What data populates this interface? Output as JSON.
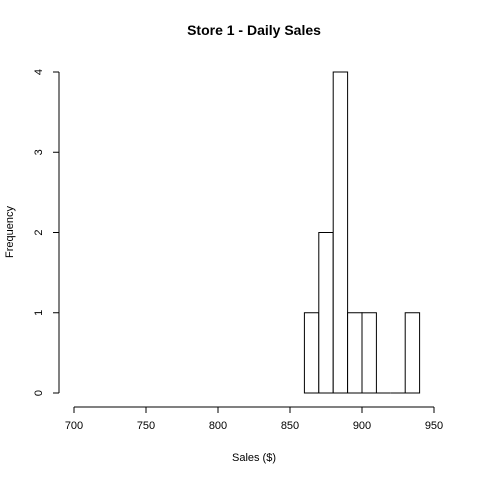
{
  "chart_data": {
    "type": "bar",
    "title": "Store 1 - Daily Sales",
    "xlabel": "Sales ($)",
    "ylabel": "Frequency",
    "xlim": [
      700,
      950
    ],
    "ylim": [
      0,
      4
    ],
    "xticks": [
      700,
      750,
      800,
      850,
      900,
      950
    ],
    "yticks": [
      0,
      1,
      2,
      3,
      4
    ],
    "bins": [
      {
        "from": 860,
        "to": 870,
        "count": 1
      },
      {
        "from": 870,
        "to": 880,
        "count": 2
      },
      {
        "from": 880,
        "to": 890,
        "count": 4
      },
      {
        "from": 890,
        "to": 900,
        "count": 1
      },
      {
        "from": 900,
        "to": 910,
        "count": 1
      },
      {
        "from": 910,
        "to": 920,
        "count": 0
      },
      {
        "from": 920,
        "to": 930,
        "count": 0
      },
      {
        "from": 930,
        "to": 940,
        "count": 1
      }
    ],
    "grid": false,
    "legend": "none"
  }
}
